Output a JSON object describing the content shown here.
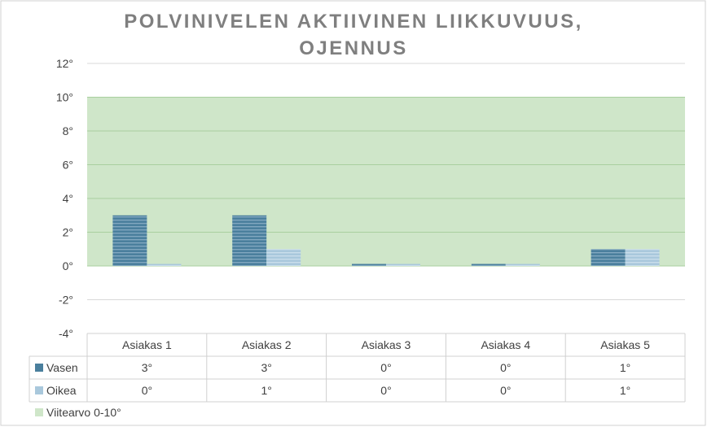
{
  "chart_data": {
    "type": "bar",
    "title_lines": [
      "POLVINIVELEN AKTIIVINEN LIIKKUVUUS,",
      "OJENNUS"
    ],
    "categories": [
      "Asiakas 1",
      "Asiakas 2",
      "Asiakas 3",
      "Asiakas 4",
      "Asiakas 5"
    ],
    "series": [
      {
        "name": "Vasen",
        "values": [
          3,
          3,
          0,
          0,
          1
        ],
        "value_labels": [
          "3°",
          "3°",
          "0°",
          "0°",
          "1°"
        ],
        "color": "#4a7f9d"
      },
      {
        "name": "Oikea",
        "values": [
          0,
          1,
          0,
          0,
          1
        ],
        "value_labels": [
          "0°",
          "1°",
          "0°",
          "0°",
          "1°"
        ],
        "color": "#9dc0d6"
      }
    ],
    "reference_band": {
      "name": "Viitearvo 0-10°",
      "from": 0,
      "to": 10,
      "color": "#cfe6c9"
    },
    "ylim": [
      -4,
      12
    ],
    "yticks": [
      -4,
      -2,
      0,
      2,
      4,
      6,
      8,
      10,
      12
    ],
    "ytick_labels": [
      "-4°",
      "-2°",
      "0°",
      "2°",
      "4°",
      "6°",
      "8°",
      "10°",
      "12°"
    ],
    "grid": true,
    "data_table": true
  }
}
